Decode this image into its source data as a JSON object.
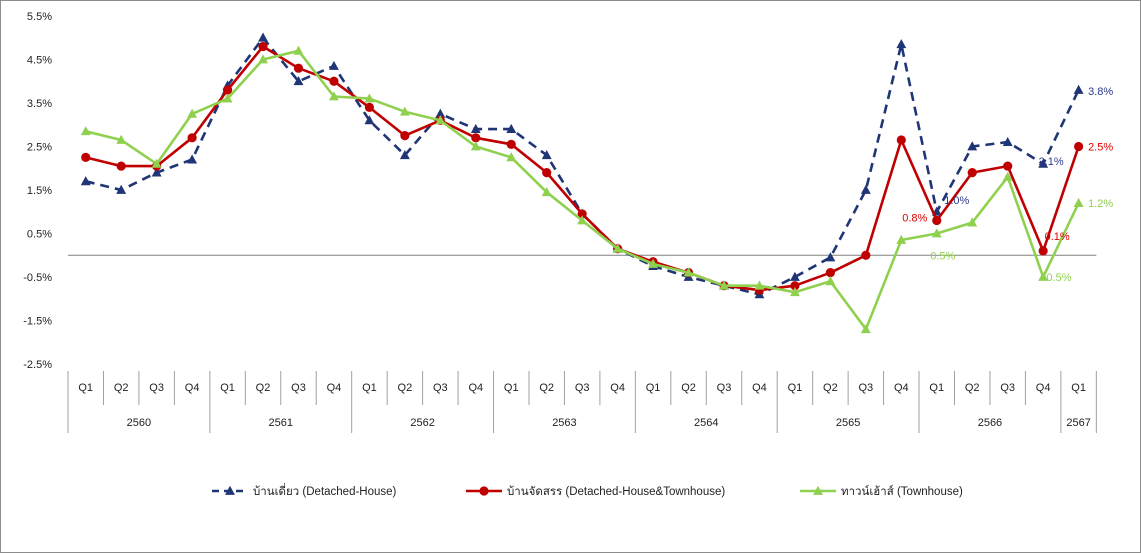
{
  "chart_data": {
    "type": "line",
    "title": "",
    "ylim": [
      -2.5,
      5.5
    ],
    "y_ticks": [
      "5.5%",
      "4.5%",
      "3.5%",
      "2.5%",
      "1.5%",
      "0.5%",
      "-0.5%",
      "-1.5%",
      "-2.5%"
    ],
    "quarters": [
      "Q1",
      "Q2",
      "Q3",
      "Q4",
      "Q1",
      "Q2",
      "Q3",
      "Q4",
      "Q1",
      "Q2",
      "Q3",
      "Q4",
      "Q1",
      "Q2",
      "Q3",
      "Q4",
      "Q1",
      "Q2",
      "Q3",
      "Q4",
      "Q1",
      "Q2",
      "Q3",
      "Q4",
      "Q1",
      "Q2",
      "Q3",
      "Q4",
      "Q1"
    ],
    "years": [
      "2560",
      "2561",
      "2562",
      "2563",
      "2564",
      "2565",
      "2566",
      "2567"
    ],
    "series": [
      {
        "name": "บ้านเดี่ยว (Detached-House)",
        "color": "#1f3576",
        "marker": "triangle",
        "dash": true,
        "values": [
          1.7,
          1.5,
          1.9,
          2.2,
          3.9,
          5.0,
          4.0,
          4.35,
          3.1,
          2.3,
          3.25,
          2.9,
          2.9,
          2.3,
          0.95,
          0.15,
          -0.25,
          -0.5,
          -0.7,
          -0.9,
          -0.5,
          -0.05,
          1.5,
          4.85,
          1.0,
          2.5,
          2.6,
          2.1,
          3.8
        ],
        "labels": [
          {
            "index": 24,
            "text": "1.0%"
          },
          {
            "index": 27,
            "text": "2.1%"
          },
          {
            "index": 28,
            "text": "3.8%"
          }
        ]
      },
      {
        "name": "บ้านจัดสรร (Detached-House&Townhouse)",
        "color": "#c00000",
        "marker": "circle",
        "dash": false,
        "values": [
          2.25,
          2.05,
          2.05,
          2.7,
          3.8,
          4.8,
          4.3,
          4.0,
          3.4,
          2.75,
          3.1,
          2.7,
          2.55,
          1.9,
          0.95,
          0.15,
          -0.15,
          -0.4,
          -0.7,
          -0.8,
          -0.7,
          -0.4,
          0.0,
          2.65,
          0.8,
          1.9,
          2.05,
          0.1,
          2.5
        ],
        "labels": [
          {
            "index": 24,
            "text": "0.8%"
          },
          {
            "index": 27,
            "text": "0.1%"
          },
          {
            "index": 28,
            "text": "2.5%"
          }
        ]
      },
      {
        "name": "ทาวน์เฮ้าส์ (Townhouse)",
        "color": "#8fd14f",
        "marker": "triangle",
        "dash": false,
        "values": [
          2.85,
          2.65,
          2.1,
          3.25,
          3.6,
          4.5,
          4.7,
          3.65,
          3.6,
          3.3,
          3.1,
          2.5,
          2.25,
          1.45,
          0.8,
          0.15,
          -0.2,
          -0.4,
          -0.7,
          -0.7,
          -0.85,
          -0.6,
          -1.7,
          0.35,
          0.5,
          0.75,
          1.8,
          -0.5,
          1.2
        ],
        "labels": [
          {
            "index": 24,
            "text": "0.5%"
          },
          {
            "index": 27,
            "text": "-0.5%"
          },
          {
            "index": 28,
            "text": "1.2%"
          }
        ]
      }
    ],
    "legend": "bottom",
    "grid": false
  }
}
